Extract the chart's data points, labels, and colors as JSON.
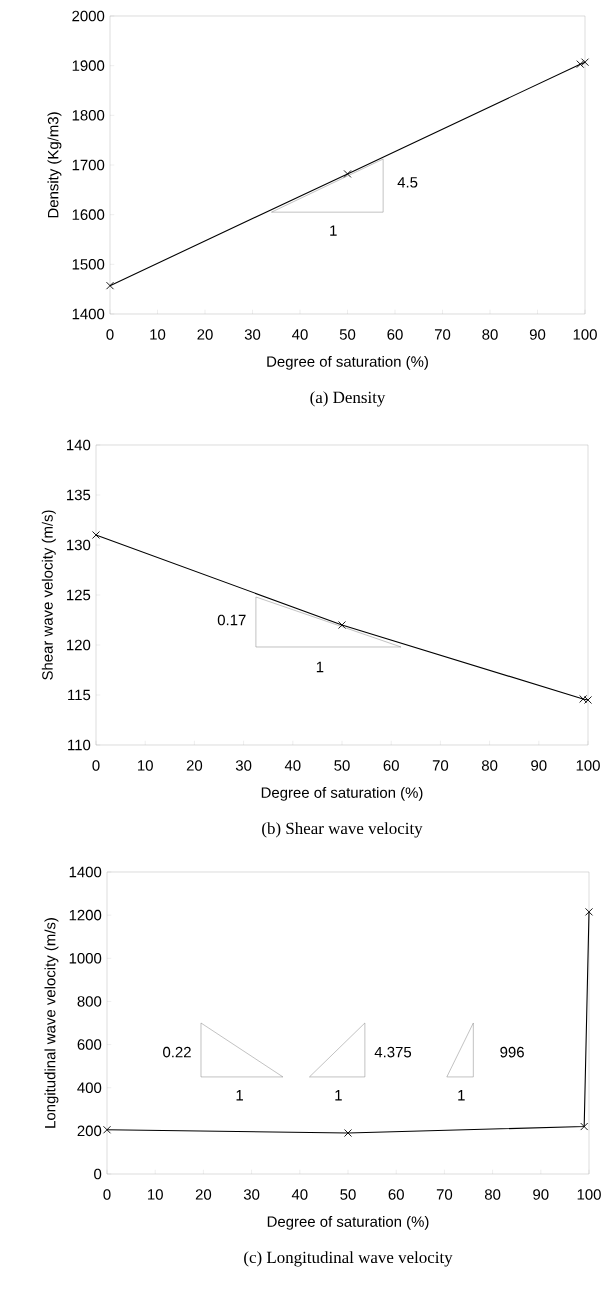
{
  "chart_data": [
    {
      "type": "line",
      "title": "(a)  Density",
      "xlabel": "Degree of saturation (%)",
      "ylabel": "Density (Kg/m3)",
      "x": [
        0,
        50,
        99,
        100
      ],
      "series": [
        {
          "color": "#000000",
          "values": [
            1457,
            1682,
            1903,
            1907
          ]
        }
      ],
      "xlim": [
        0,
        100
      ],
      "ylim": [
        1400,
        2000
      ],
      "xticks": [
        0,
        10,
        20,
        30,
        40,
        50,
        60,
        70,
        80,
        90,
        100
      ],
      "yticks": [
        1400,
        1500,
        1600,
        1700,
        1800,
        1900,
        2000
      ],
      "marker": "cross",
      "annotations": [
        "4.5",
        "1"
      ]
    },
    {
      "type": "line",
      "title": "(b)  Shear  wave  velocity",
      "xlabel": "Degree of saturation (%)",
      "ylabel": "Shear wave velocity (m/s)",
      "x": [
        0,
        50,
        99,
        100
      ],
      "series": [
        {
          "color": "#000000",
          "values": [
            131,
            122,
            114.6,
            114.5
          ]
        }
      ],
      "xlim": [
        0,
        100
      ],
      "ylim": [
        110,
        140
      ],
      "xticks": [
        0,
        10,
        20,
        30,
        40,
        50,
        60,
        70,
        80,
        90,
        100
      ],
      "yticks": [
        110,
        115,
        120,
        125,
        130,
        135,
        140
      ],
      "marker": "cross",
      "annotations": [
        "0.17",
        "1"
      ]
    },
    {
      "type": "line",
      "title": "(c)  Longitudinal  wave  velocity",
      "xlabel": "Degree of saturation (%)",
      "ylabel": "Longitudinal wave velocity (m/s)",
      "x": [
        0,
        50,
        99,
        100
      ],
      "series": [
        {
          "color": "#000000",
          "values": [
            205,
            190,
            220,
            1215
          ]
        }
      ],
      "xlim": [
        0,
        100
      ],
      "ylim": [
        0,
        1400
      ],
      "xticks": [
        0,
        10,
        20,
        30,
        40,
        50,
        60,
        70,
        80,
        90,
        100
      ],
      "yticks": [
        0,
        200,
        400,
        600,
        800,
        1000,
        1200,
        1400
      ],
      "marker": "cross",
      "annotations": [
        "0.22",
        "1",
        "4.375",
        "1",
        "996",
        "1"
      ]
    }
  ]
}
